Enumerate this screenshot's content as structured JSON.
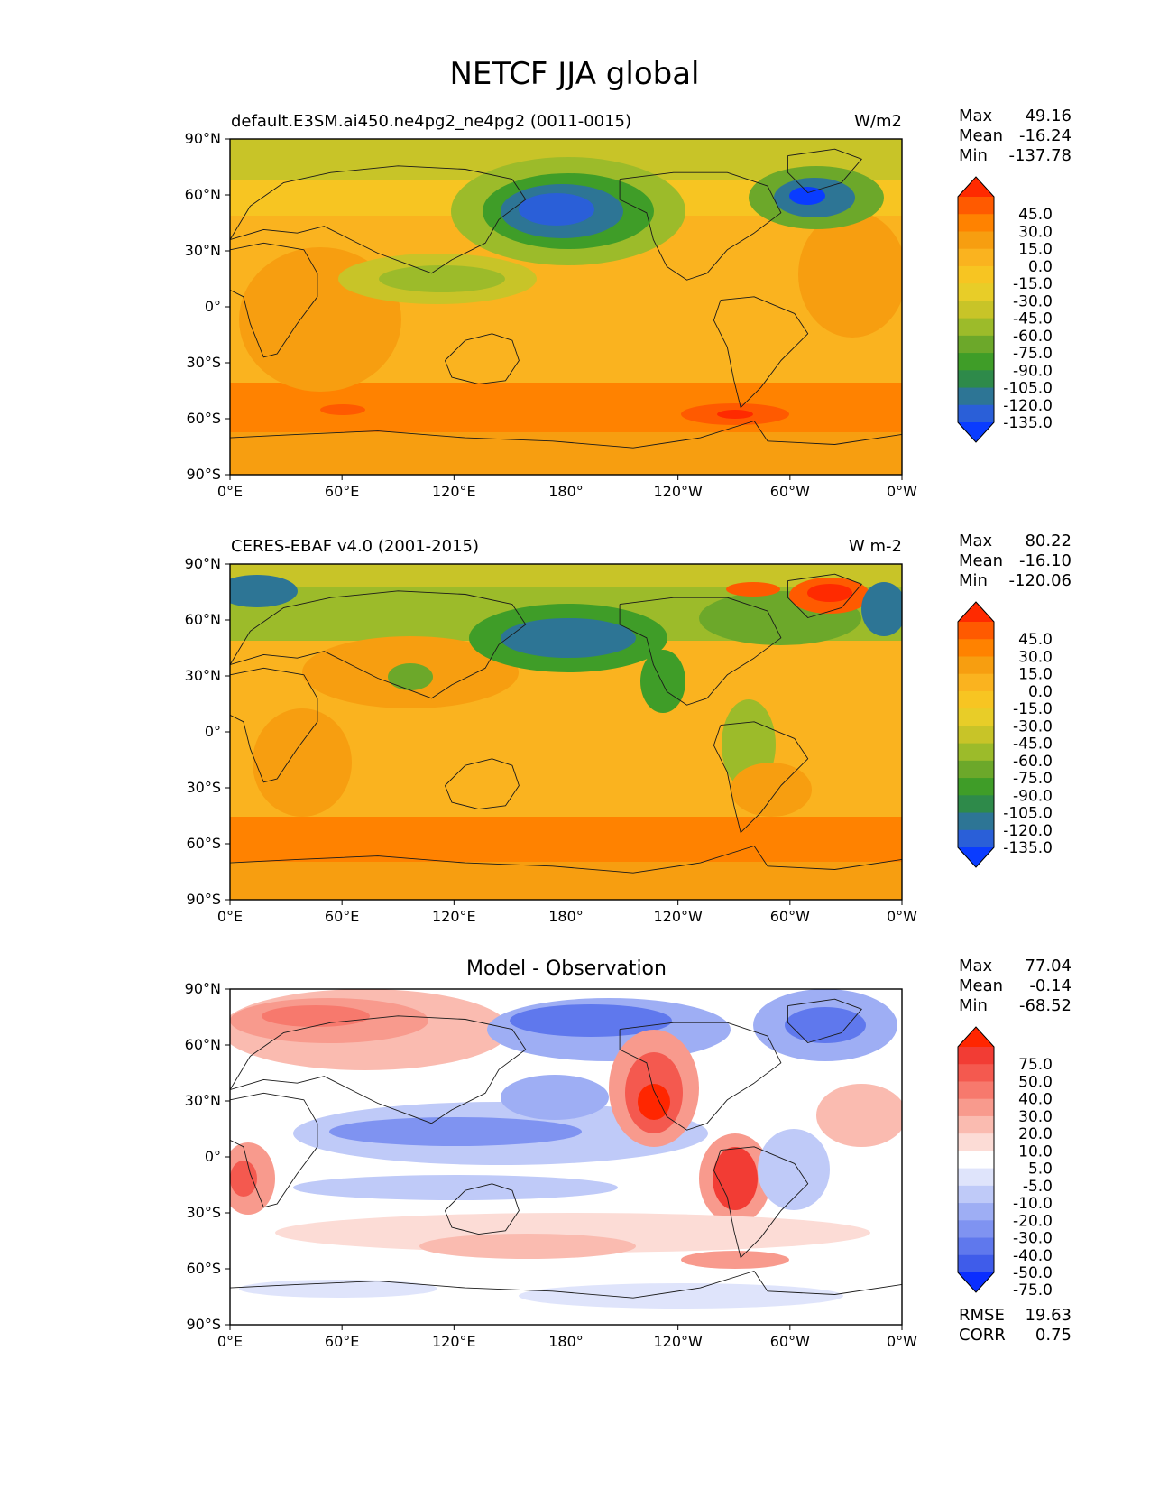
{
  "figure": {
    "title": "NETCF JJA global"
  },
  "axes": {
    "lon_ticks": [
      "0°E",
      "60°E",
      "120°E",
      "180°",
      "120°W",
      "60°W",
      "0°W"
    ],
    "lat_ticks": [
      "90°N",
      "60°N",
      "30°N",
      "0°",
      "30°S",
      "60°S",
      "90°S"
    ]
  },
  "panels": [
    {
      "left_title": "default.E3SM.ai450.ne4pg2_ne4pg2 (0011-0015)",
      "center_title": "",
      "units": "W/m2",
      "stats": [
        {
          "label": "Max",
          "value": "49.16"
        },
        {
          "label": "Mean",
          "value": "-16.24"
        },
        {
          "label": "Min",
          "value": "-137.78"
        }
      ],
      "colorbar": {
        "levels": [
          "45.0",
          "30.0",
          "15.0",
          "0.0",
          "-15.0",
          "-30.0",
          "-45.0",
          "-60.0",
          "-75.0",
          "-90.0",
          "-105.0",
          "-120.0",
          "-135.0"
        ],
        "colors": [
          "#ff2a00",
          "#ff5a00",
          "#ff8200",
          "#f79e10",
          "#fab31f",
          "#f7c522",
          "#e8cd28",
          "#c8c428",
          "#9cbb2a",
          "#6ca82a",
          "#3f9d28",
          "#2e8a4a",
          "#2d7595",
          "#2a5fd8",
          "#0a3cff"
        ]
      }
    },
    {
      "left_title": "CERES-EBAF v4.0 (2001-2015)",
      "center_title": "",
      "units": "W m-2",
      "stats": [
        {
          "label": "Max",
          "value": "80.22"
        },
        {
          "label": "Mean",
          "value": "-16.10"
        },
        {
          "label": "Min",
          "value": "-120.06"
        }
      ],
      "colorbar": {
        "levels": [
          "45.0",
          "30.0",
          "15.0",
          "0.0",
          "-15.0",
          "-30.0",
          "-45.0",
          "-60.0",
          "-75.0",
          "-90.0",
          "-105.0",
          "-120.0",
          "-135.0"
        ],
        "colors": [
          "#ff2a00",
          "#ff5a00",
          "#ff8200",
          "#f79e10",
          "#fab31f",
          "#f7c522",
          "#e8cd28",
          "#c8c428",
          "#9cbb2a",
          "#6ca82a",
          "#3f9d28",
          "#2e8a4a",
          "#2d7595",
          "#2a5fd8",
          "#0a3cff"
        ]
      }
    },
    {
      "left_title": "",
      "center_title": "Model - Observation",
      "units": "",
      "stats": [
        {
          "label": "Max",
          "value": "77.04"
        },
        {
          "label": "Mean",
          "value": "-0.14"
        },
        {
          "label": "Min",
          "value": "-68.52"
        }
      ],
      "extra_stats": [
        {
          "label": "RMSE",
          "value": "19.63"
        },
        {
          "label": "CORR",
          "value": "0.75"
        }
      ],
      "colorbar": {
        "levels": [
          "75.0",
          "50.0",
          "40.0",
          "30.0",
          "20.0",
          "10.0",
          "5.0",
          "-5.0",
          "-10.0",
          "-20.0",
          "-30.0",
          "-40.0",
          "-50.0",
          "-75.0"
        ],
        "colors": [
          "#ff2600",
          "#f23c34",
          "#f4594f",
          "#f7796d",
          "#f89a8d",
          "#fabbb0",
          "#fcdcd6",
          "#ffffff",
          "#dfe4fb",
          "#bfcaf8",
          "#9eaef4",
          "#7f93f1",
          "#5f78ed",
          "#3f5cea",
          "#0a2eff"
        ]
      }
    }
  ],
  "map_colors": {
    "ocean_model": "#fbb21d",
    "ocean_obs": "#fab21f",
    "diff_bg": "#ffffff",
    "coast": "#1a1a1a"
  }
}
